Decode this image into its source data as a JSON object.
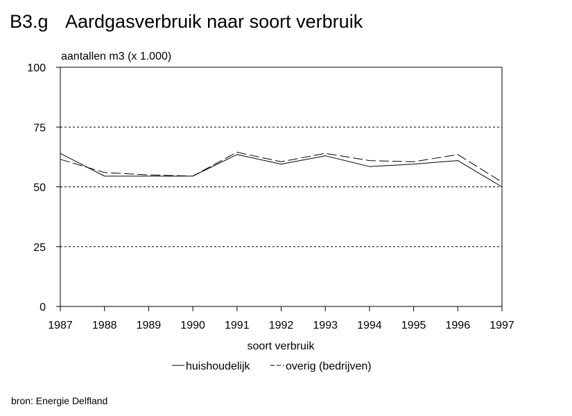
{
  "chart_data": {
    "type": "line",
    "title_code": "B3.g",
    "title": "Aardgasverbruik naar soort verbruik",
    "ylabel": "aantallen m3 (x 1.000)",
    "xlabel": "soort verbruik",
    "x": [
      "1987",
      "1988",
      "1989",
      "1990",
      "1991",
      "1992",
      "1993",
      "1994",
      "1995",
      "1996",
      "1997"
    ],
    "ylim": [
      0,
      100
    ],
    "yticks": [
      "0",
      "25",
      "50",
      "75",
      "100"
    ],
    "grid": "dashed horizontal",
    "legend_position": "bottom",
    "series": [
      {
        "name": "huishoudelijk",
        "style": "solid",
        "color": "#000000",
        "values": [
          64,
          54.5,
          54.5,
          54.5,
          63.5,
          59.5,
          63,
          58.5,
          59.5,
          61,
          50
        ]
      },
      {
        "name": "overig (bedrijven)",
        "style": "dashed",
        "color": "#000000",
        "values": [
          61.5,
          56,
          55,
          54.5,
          64.5,
          60.5,
          64,
          61,
          60.5,
          63.5,
          52
        ]
      }
    ]
  },
  "source": "bron: Energie Delfland"
}
